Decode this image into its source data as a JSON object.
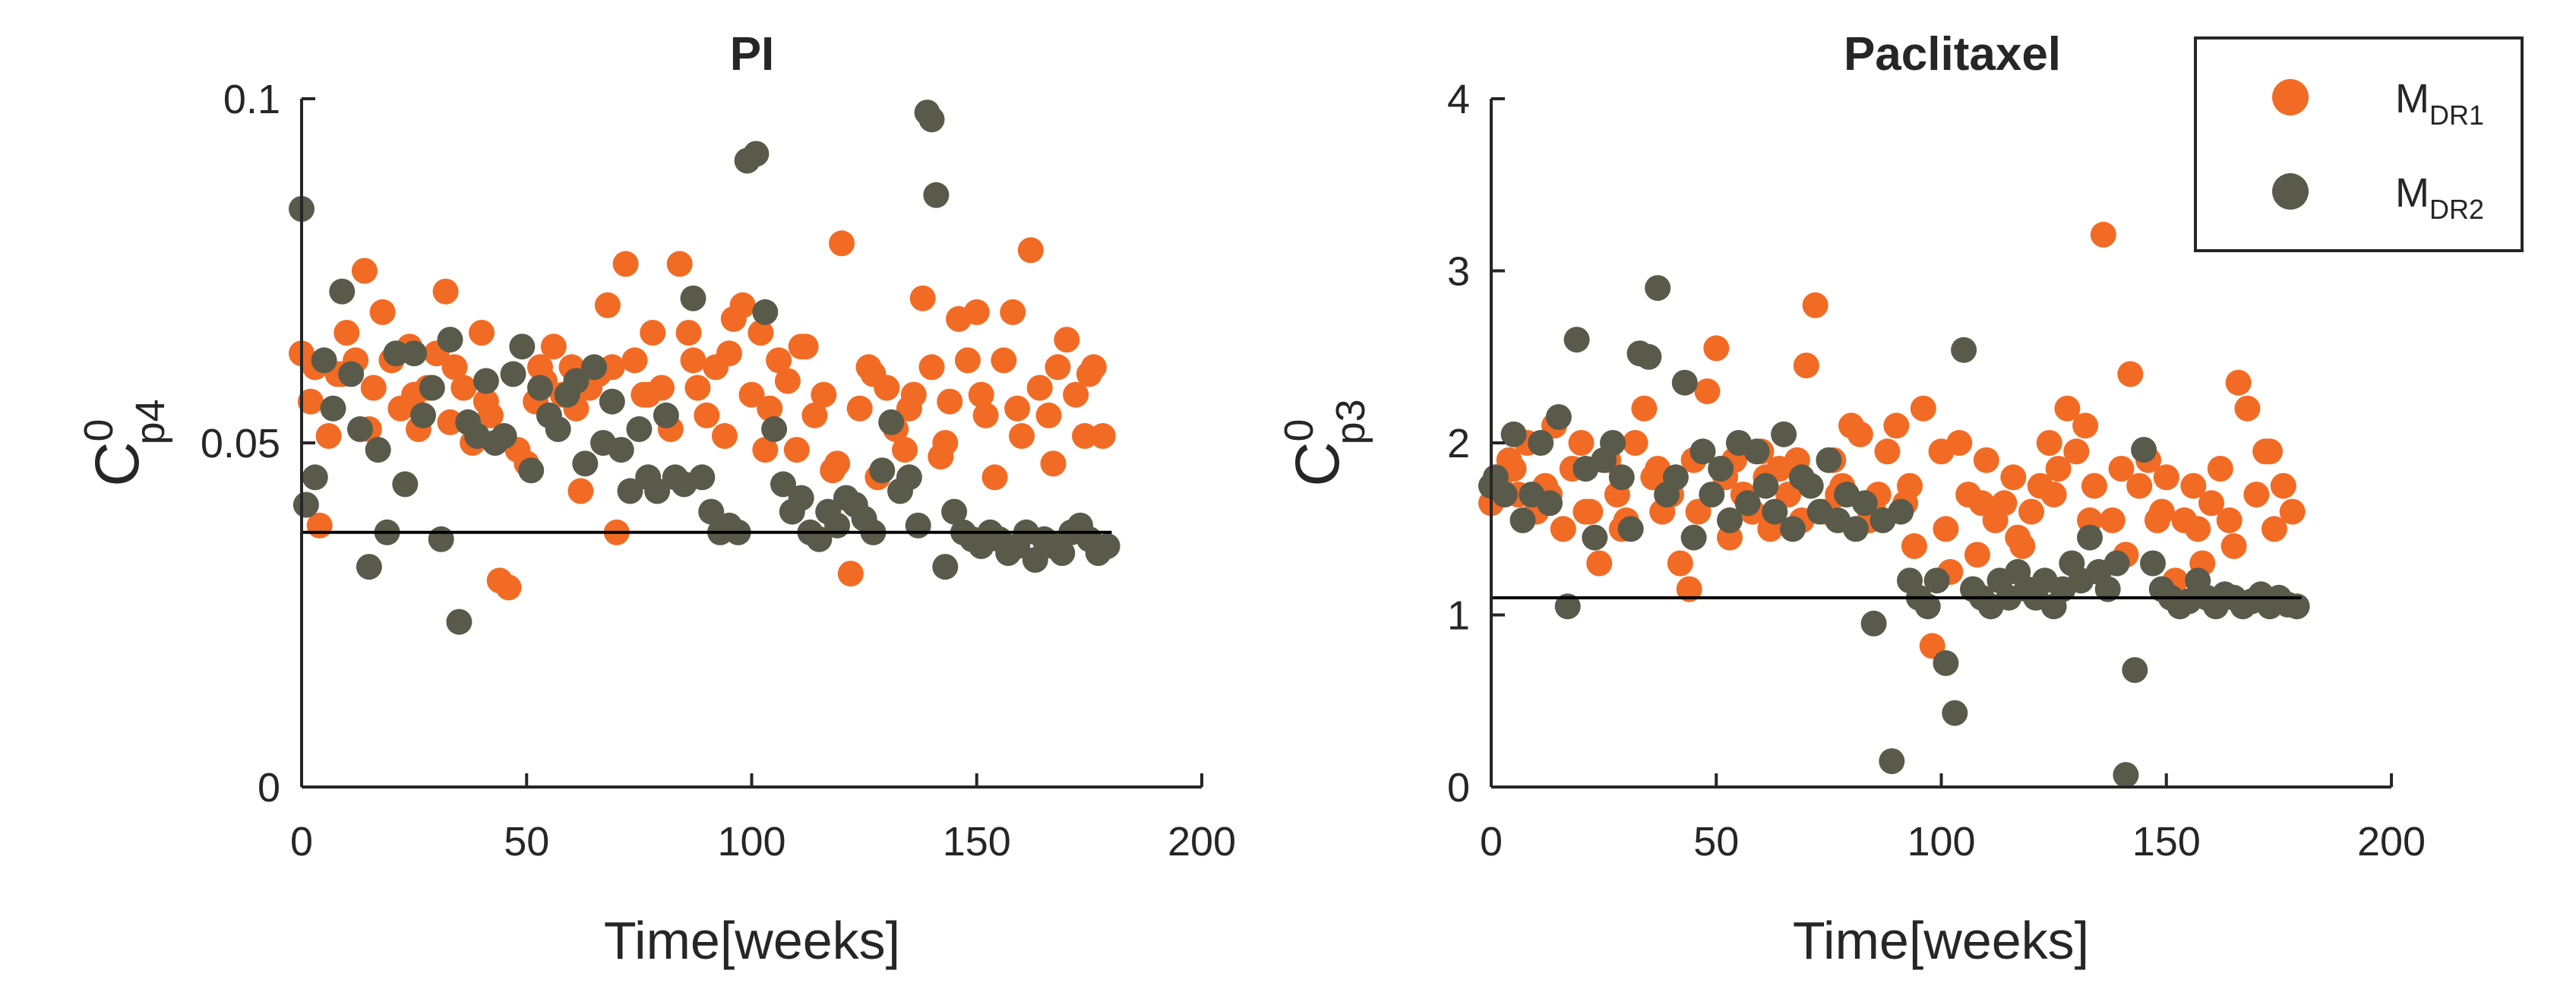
{
  "chart_data": [
    {
      "type": "scatter",
      "title": "PI",
      "xlabel": "Time[weeks]",
      "ylabel_base": "C",
      "ylabel_sup": "0",
      "ylabel_sub": "p4",
      "xlim": [
        0,
        200
      ],
      "ylim": [
        0,
        0.1
      ],
      "xticks": [
        0,
        50,
        100,
        150,
        200
      ],
      "xtick_labels": [
        "0",
        "50",
        "100",
        "150",
        "200"
      ],
      "yticks": [
        0,
        0.05,
        0.1
      ],
      "ytick_labels": [
        "0",
        "0.05",
        "0.1"
      ],
      "hline": {
        "y": 0.037,
        "x_from": 0,
        "x_to": 180
      },
      "series": [
        {
          "name": "MDR1",
          "color": "#F26B24",
          "x": [
            0,
            2,
            4,
            6,
            8,
            10,
            12,
            14,
            16,
            18,
            20,
            22,
            24,
            26,
            28,
            30,
            32,
            34,
            36,
            38,
            40,
            42,
            44,
            46,
            48,
            50,
            52,
            54,
            56,
            58,
            60,
            62,
            64,
            66,
            68,
            70,
            72,
            74,
            76,
            78,
            80,
            82,
            84,
            86,
            88,
            90,
            92,
            94,
            96,
            98,
            100,
            102,
            104,
            106,
            108,
            110,
            112,
            114,
            116,
            118,
            120,
            122,
            124,
            126,
            128,
            130,
            132,
            134,
            136,
            138,
            140,
            142,
            144,
            146,
            148,
            150,
            152,
            154,
            156,
            158,
            160,
            162,
            164,
            166,
            168,
            170,
            172,
            174,
            176,
            178,
            3,
            9,
            15,
            25,
            33,
            41,
            53,
            61,
            69,
            77,
            87,
            95,
            103,
            111,
            119,
            127,
            135,
            143,
            151,
            159,
            167,
            175
          ],
          "y": [
            0.063,
            0.056,
            0.038,
            0.051,
            0.06,
            0.066,
            0.062,
            0.075,
            0.058,
            0.069,
            0.062,
            0.055,
            0.064,
            0.052,
            0.058,
            0.063,
            0.072,
            0.061,
            0.058,
            0.05,
            0.066,
            0.054,
            0.03,
            0.029,
            0.049,
            0.047,
            0.056,
            0.059,
            0.064,
            0.057,
            0.061,
            0.043,
            0.058,
            0.06,
            0.07,
            0.037,
            0.076,
            0.062,
            0.057,
            0.066,
            0.058,
            0.052,
            0.076,
            0.066,
            0.058,
            0.054,
            0.061,
            0.051,
            0.068,
            0.07,
            0.057,
            0.066,
            0.055,
            0.062,
            0.059,
            0.049,
            0.064,
            0.054,
            0.057,
            0.046,
            0.079,
            0.031,
            0.055,
            0.061,
            0.045,
            0.058,
            0.052,
            0.049,
            0.057,
            0.071,
            0.061,
            0.048,
            0.056,
            0.068,
            0.062,
            0.069,
            0.054,
            0.045,
            0.062,
            0.069,
            0.051,
            0.078,
            0.058,
            0.054,
            0.061,
            0.065,
            0.057,
            0.051,
            0.061,
            0.051,
            0.061,
            0.06,
            0.052,
            0.057,
            0.053,
            0.056,
            0.061,
            0.055,
            0.061,
            0.057,
            0.062,
            0.063,
            0.049,
            0.064,
            0.047,
            0.06,
            0.055,
            0.05,
            0.057,
            0.055,
            0.047,
            0.06
          ]
        },
        {
          "name": "MDR2",
          "color": "#5A5A4A",
          "x": [
            0,
            1,
            3,
            5,
            7,
            9,
            11,
            13,
            15,
            17,
            19,
            21,
            23,
            25,
            27,
            29,
            31,
            33,
            35,
            37,
            39,
            41,
            43,
            45,
            47,
            49,
            51,
            53,
            55,
            57,
            59,
            61,
            63,
            65,
            67,
            69,
            71,
            73,
            75,
            77,
            79,
            81,
            83,
            85,
            87,
            89,
            91,
            93,
            95,
            97,
            99,
            101,
            103,
            105,
            107,
            109,
            111,
            113,
            115,
            117,
            119,
            121,
            123,
            125,
            127,
            129,
            131,
            133,
            135,
            137,
            139,
            140,
            141,
            143,
            145,
            147,
            149,
            151,
            153,
            155,
            157,
            159,
            161,
            163,
            165,
            167,
            169,
            171,
            173,
            175,
            177,
            179
          ],
          "y": [
            0.084,
            0.041,
            0.045,
            0.062,
            0.055,
            0.072,
            0.06,
            0.052,
            0.032,
            0.049,
            0.037,
            0.063,
            0.044,
            0.063,
            0.054,
            0.058,
            0.036,
            0.065,
            0.024,
            0.053,
            0.051,
            0.059,
            0.05,
            0.051,
            0.06,
            0.064,
            0.046,
            0.058,
            0.054,
            0.052,
            0.057,
            0.059,
            0.047,
            0.061,
            0.05,
            0.056,
            0.049,
            0.043,
            0.052,
            0.045,
            0.043,
            0.054,
            0.045,
            0.044,
            0.071,
            0.045,
            0.04,
            0.037,
            0.038,
            0.037,
            0.091,
            0.092,
            0.069,
            0.052,
            0.044,
            0.04,
            0.042,
            0.037,
            0.036,
            0.04,
            0.038,
            0.042,
            0.041,
            0.039,
            0.037,
            0.046,
            0.053,
            0.043,
            0.045,
            0.038,
            0.098,
            0.097,
            0.086,
            0.032,
            0.04,
            0.037,
            0.036,
            0.035,
            0.037,
            0.036,
            0.034,
            0.035,
            0.037,
            0.033,
            0.036,
            0.035,
            0.034,
            0.037,
            0.038,
            0.036,
            0.034,
            0.035
          ]
        }
      ]
    },
    {
      "type": "scatter",
      "title": "Paclitaxel",
      "xlabel": "Time[weeks]",
      "ylabel_base": "C",
      "ylabel_sup": "0",
      "ylabel_sub": "p3",
      "xlim": [
        0,
        200
      ],
      "ylim": [
        0,
        4
      ],
      "xticks": [
        0,
        50,
        100,
        150,
        200
      ],
      "xtick_labels": [
        "0",
        "50",
        "100",
        "150",
        "200"
      ],
      "yticks": [
        0,
        1,
        2,
        3,
        4
      ],
      "ytick_labels": [
        "0",
        "1",
        "2",
        "3",
        "4"
      ],
      "hline": {
        "y": 1.1,
        "x_from": 0,
        "x_to": 180
      },
      "series": [
        {
          "name": "MDR1",
          "color": "#F26B24",
          "x": [
            0,
            2,
            4,
            6,
            8,
            10,
            12,
            14,
            16,
            18,
            20,
            22,
            24,
            26,
            28,
            30,
            32,
            34,
            36,
            38,
            40,
            42,
            44,
            46,
            48,
            50,
            52,
            54,
            56,
            58,
            60,
            62,
            64,
            66,
            68,
            70,
            72,
            74,
            76,
            78,
            80,
            82,
            84,
            86,
            88,
            90,
            92,
            94,
            96,
            98,
            100,
            102,
            104,
            106,
            108,
            110,
            112,
            114,
            116,
            118,
            120,
            122,
            124,
            126,
            128,
            130,
            132,
            134,
            136,
            138,
            140,
            142,
            144,
            146,
            148,
            150,
            152,
            154,
            156,
            158,
            160,
            162,
            164,
            166,
            168,
            170,
            172,
            174,
            176,
            178,
            5,
            13,
            21,
            29,
            37,
            45,
            53,
            61,
            69,
            77,
            85,
            93,
            101,
            109,
            117,
            125,
            133,
            141,
            149,
            157,
            165,
            173
          ],
          "y": [
            1.65,
            1.8,
            1.9,
            1.7,
            2.0,
            1.6,
            1.75,
            2.1,
            1.5,
            1.85,
            2.0,
            1.6,
            1.3,
            1.9,
            1.7,
            1.55,
            2.0,
            2.2,
            1.8,
            1.6,
            1.7,
            1.3,
            1.15,
            1.6,
            2.3,
            2.55,
            1.8,
            1.9,
            1.7,
            1.6,
            1.95,
            1.5,
            1.85,
            1.7,
            1.9,
            2.45,
            2.8,
            1.6,
            1.9,
            1.75,
            2.1,
            2.05,
            1.55,
            1.7,
            1.95,
            2.1,
            1.65,
            1.4,
            2.2,
            0.82,
            1.95,
            1.25,
            2.0,
            1.7,
            1.35,
            1.9,
            1.55,
            1.65,
            1.8,
            1.4,
            1.6,
            1.75,
            2.0,
            1.85,
            2.2,
            1.95,
            2.1,
            1.75,
            3.21,
            1.55,
            1.85,
            2.4,
            1.75,
            1.9,
            1.55,
            1.8,
            1.2,
            1.55,
            1.75,
            1.3,
            1.65,
            1.85,
            1.55,
            2.35,
            2.2,
            1.7,
            1.95,
            1.5,
            1.75,
            1.6,
            1.85,
            1.7,
            1.6,
            1.5,
            1.85,
            1.9,
            1.45,
            1.8,
            1.55,
            1.7,
            1.6,
            1.75,
            1.5,
            1.65,
            1.45,
            1.7,
            1.55,
            1.35,
            1.6,
            1.5,
            1.4,
            1.95
          ]
        },
        {
          "name": "MDR2",
          "color": "#5A5A4A",
          "x": [
            0,
            1,
            3,
            5,
            7,
            9,
            11,
            13,
            15,
            17,
            19,
            21,
            23,
            25,
            27,
            29,
            31,
            33,
            35,
            37,
            39,
            41,
            43,
            45,
            47,
            49,
            51,
            53,
            55,
            57,
            59,
            61,
            63,
            65,
            67,
            69,
            71,
            73,
            75,
            77,
            79,
            81,
            83,
            85,
            87,
            89,
            91,
            93,
            95,
            97,
            99,
            101,
            103,
            105,
            107,
            109,
            111,
            113,
            115,
            117,
            119,
            121,
            123,
            125,
            127,
            129,
            131,
            133,
            135,
            137,
            139,
            141,
            143,
            145,
            147,
            149,
            151,
            153,
            155,
            157,
            159,
            161,
            163,
            165,
            167,
            169,
            171,
            173,
            175,
            177,
            179
          ],
          "y": [
            1.75,
            1.8,
            1.7,
            2.05,
            1.55,
            1.7,
            2.0,
            1.65,
            2.15,
            1.05,
            2.6,
            1.85,
            1.45,
            1.9,
            2.0,
            1.8,
            1.5,
            2.52,
            2.5,
            2.9,
            1.7,
            1.8,
            2.35,
            1.45,
            1.95,
            1.7,
            1.85,
            1.55,
            2.0,
            1.65,
            1.95,
            1.75,
            1.6,
            2.05,
            1.5,
            1.8,
            1.75,
            1.6,
            1.9,
            1.55,
            1.7,
            1.5,
            1.65,
            0.95,
            1.55,
            0.15,
            1.6,
            1.2,
            1.1,
            1.05,
            1.2,
            0.72,
            0.43,
            2.54,
            1.15,
            1.1,
            1.05,
            1.2,
            1.1,
            1.25,
            1.15,
            1.1,
            1.2,
            1.05,
            1.15,
            1.3,
            1.2,
            1.45,
            1.25,
            1.15,
            1.3,
            0.07,
            0.68,
            1.96,
            1.3,
            1.15,
            1.1,
            1.05,
            1.08,
            1.2,
            1.1,
            1.05,
            1.12,
            1.1,
            1.05,
            1.08,
            1.12,
            1.05,
            1.1,
            1.06,
            1.05
          ]
        }
      ]
    }
  ],
  "legend": {
    "items": [
      {
        "base": "M",
        "sub": "DR1",
        "color": "#F26B24"
      },
      {
        "base": "M",
        "sub": "DR2",
        "color": "#5A5A4A"
      }
    ]
  }
}
